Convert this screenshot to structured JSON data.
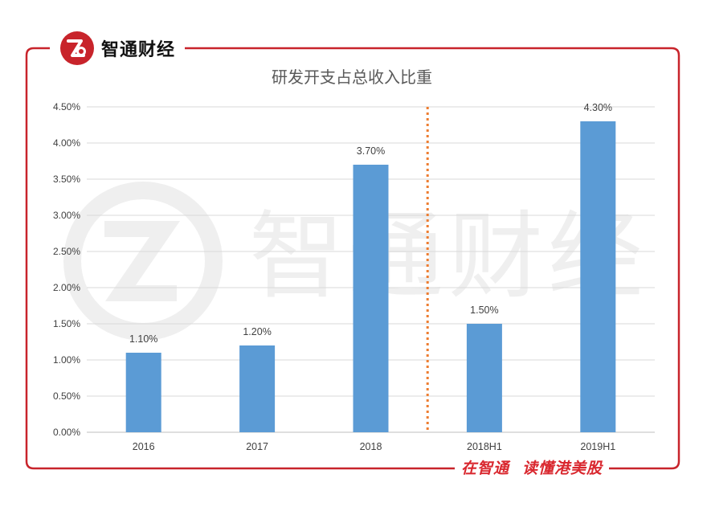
{
  "brand": {
    "name": "智通财经",
    "logo_icon": "zhitong-logo-icon",
    "accent_color": "#c8242b"
  },
  "watermark": {
    "text": "智通财经"
  },
  "slogan": {
    "part1": "在智通",
    "part2": "读懂港美股"
  },
  "chart_data": {
    "type": "bar",
    "title": "研发开支占总收入比重",
    "categories": [
      "2016",
      "2017",
      "2018",
      "2018H1",
      "2019H1"
    ],
    "values": [
      1.1,
      1.2,
      3.7,
      1.5,
      4.3
    ],
    "data_labels": [
      "1.10%",
      "1.20%",
      "3.70%",
      "1.50%",
      "4.30%"
    ],
    "y_ticks": [
      "0.00%",
      "0.50%",
      "1.00%",
      "1.50%",
      "2.00%",
      "2.50%",
      "3.00%",
      "3.50%",
      "4.00%",
      "4.50%"
    ],
    "ylim": [
      0,
      4.5
    ],
    "grid": true,
    "legend": "none",
    "bar_color": "#5b9bd5",
    "divider": {
      "between": [
        "2018",
        "2018H1"
      ],
      "style": "dotted",
      "color": "#ed7d31"
    }
  }
}
